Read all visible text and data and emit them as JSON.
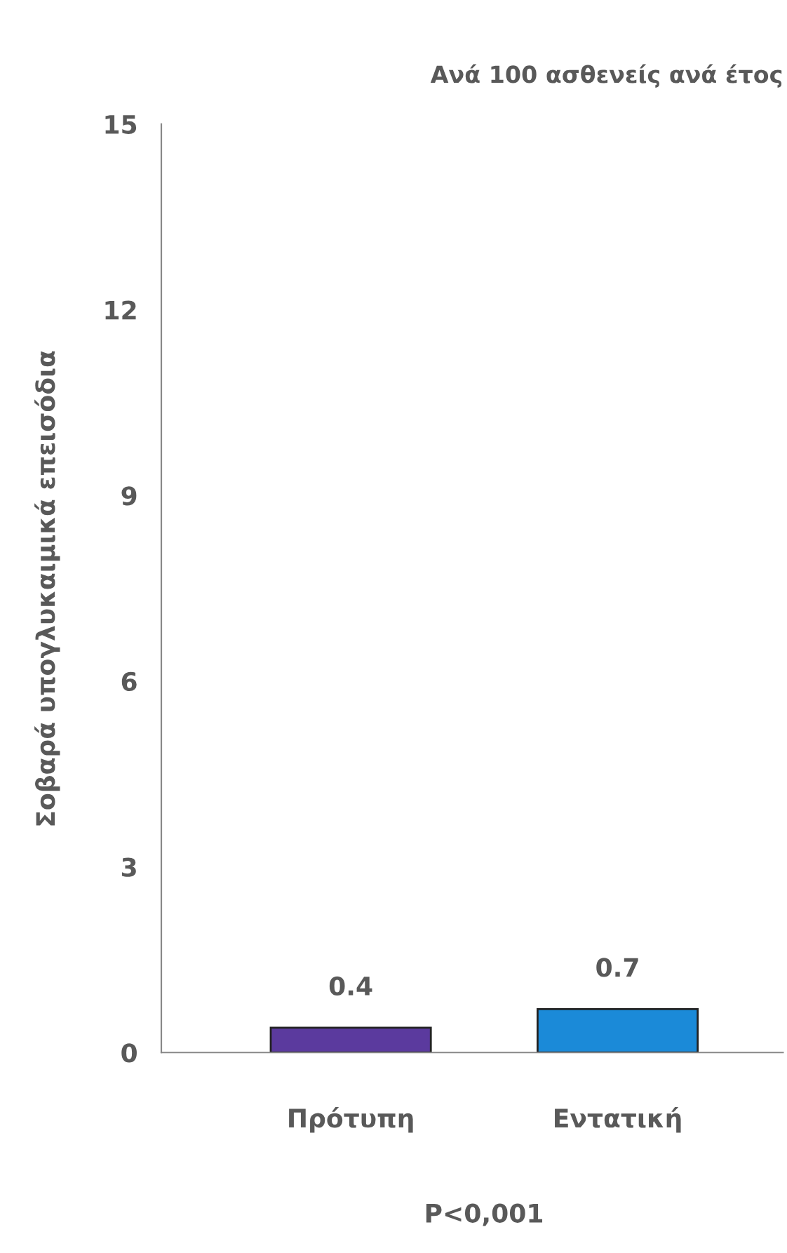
{
  "chart_data": {
    "type": "bar",
    "title": "Ανά 100 ασθενείς ανά έτος",
    "ylabel": "Σοβαρά υπογλυκαιμικά επεισόδια",
    "categories": [
      "Πρότυπη",
      "Εντατική"
    ],
    "values": [
      0.4,
      0.7
    ],
    "colors": [
      "#5b3a9e",
      "#1b8ad8"
    ],
    "ylim": [
      0,
      15
    ],
    "yticks": [
      0,
      3,
      6,
      9,
      12,
      15
    ],
    "data_labels": true,
    "grid": false,
    "legend": false,
    "annotations": [
      "P<0,001"
    ]
  }
}
